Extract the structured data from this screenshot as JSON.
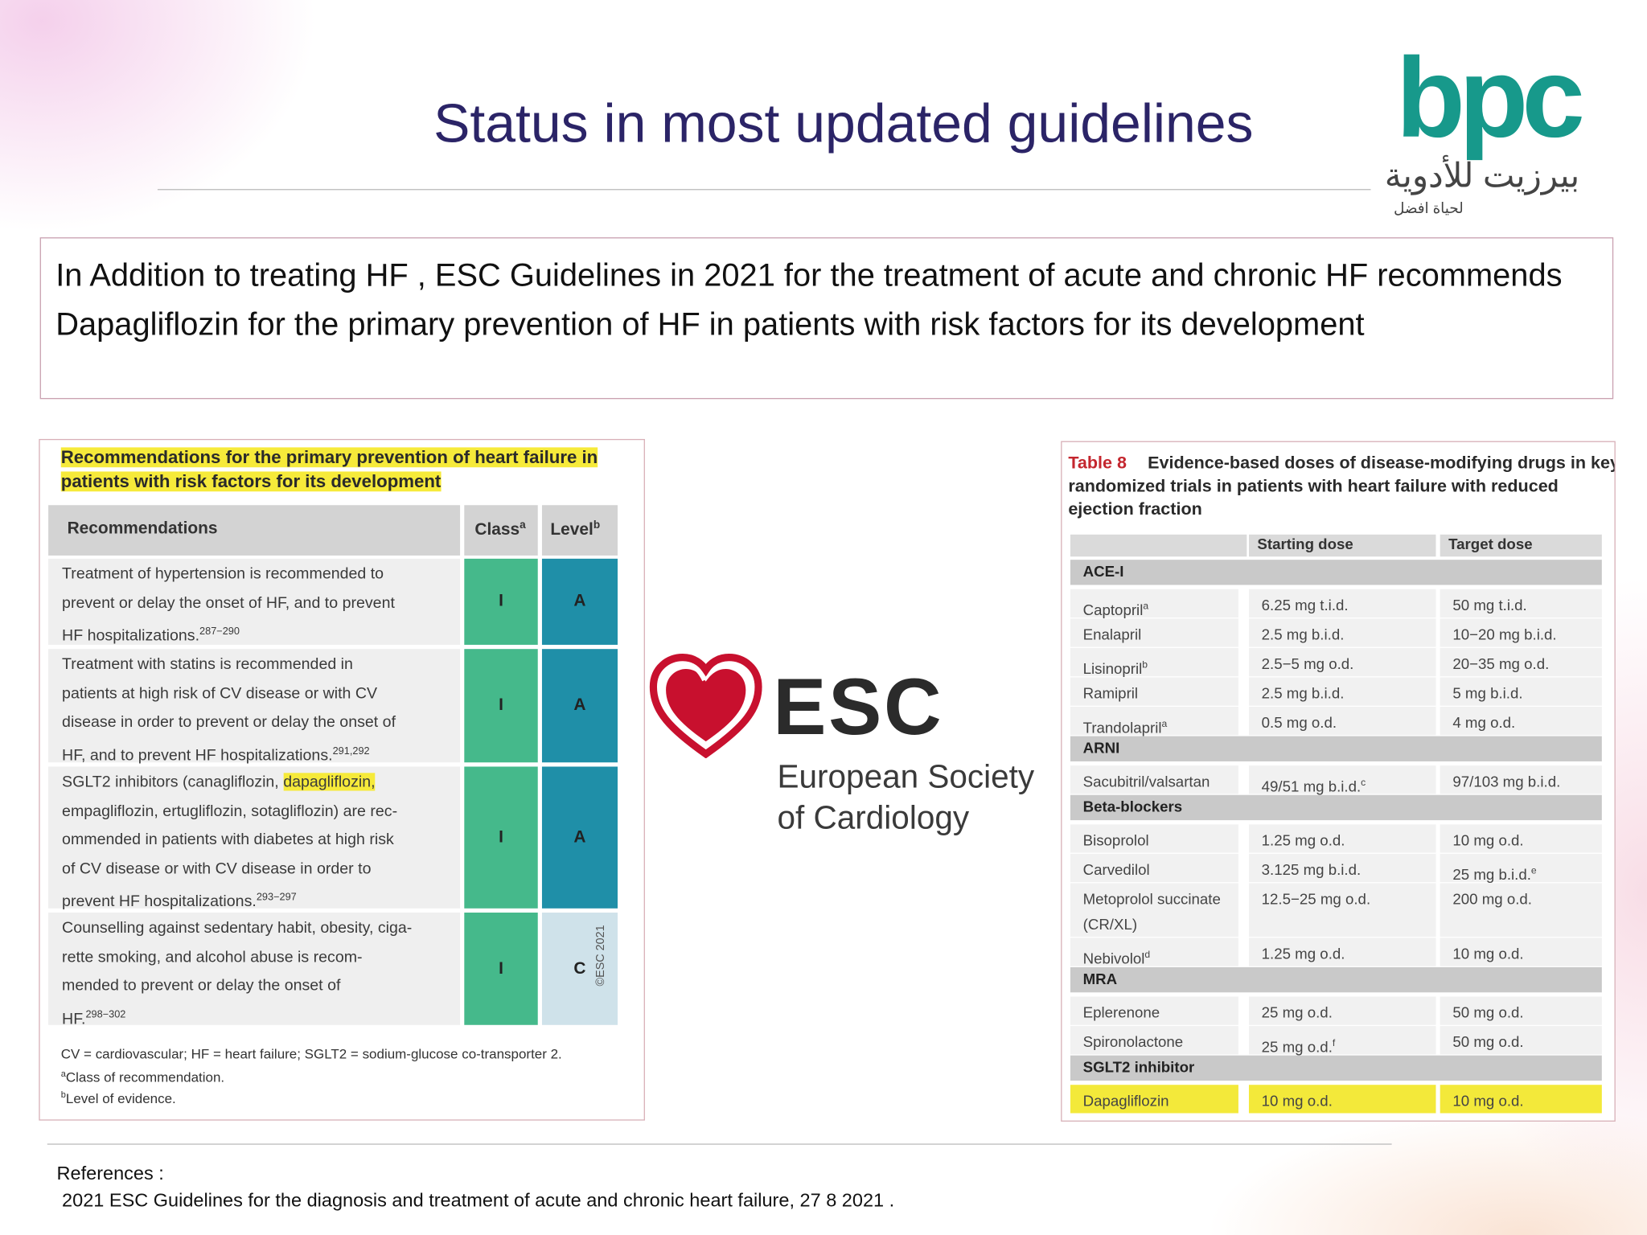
{
  "header": {
    "title": "Status in most updated guidelines"
  },
  "logo": {
    "name": "bpc",
    "arabic": "بيرزيت للأدوية",
    "tagline": "لحياة افضل"
  },
  "intro": "In Addition to treating HF , ESC Guidelines in 2021 for the treatment of acute and chronic HF recommends Dapagliflozin for the primary prevention of HF in patients with risk factors for its development",
  "recommendations": {
    "title": "Recommendations for the primary prevention of heart failure in patients with risk factors for its development",
    "headers": {
      "text": "Recommendations",
      "class": "Class",
      "class_note": "a",
      "level": "Level",
      "level_note": "b"
    },
    "rows": [
      {
        "lines": [
          "Treatment of hypertension is recommended to",
          "prevent or delay the onset of HF, and to prevent",
          "HF hospitalizations."
        ],
        "refs": "287−290",
        "class": "I",
        "level": "A"
      },
      {
        "lines": [
          "Treatment with statins is recommended in",
          "patients at high risk of CV disease or with CV",
          "disease in order to prevent or delay the onset of",
          "HF, and to prevent HF hospitalizations."
        ],
        "refs": "291,292",
        "class": "I",
        "level": "A"
      },
      {
        "lines": [
          {
            "text": "SGLT2 inhibitors (canagliflozin,",
            "highlight": "dapagliflozin,"
          },
          "empagliflozin, ertugliflozin, sotagliflozin) are rec-",
          "ommended in patients with diabetes at high risk",
          "of CV disease or with CV disease in order to",
          "prevent HF hospitalizations."
        ],
        "refs": "293−297",
        "class": "I",
        "level": "A"
      },
      {
        "lines": [
          "Counselling against sedentary habit, obesity, ciga-",
          "rette smoking, and alcohol abuse is recom-",
          "mended to prevent or delay the onset of",
          "HF."
        ],
        "refs": "298−302",
        "class": "I",
        "level": "C"
      }
    ],
    "footnotes": [
      {
        "text": "CV = cardiovascular; HF = heart failure; SGLT2 = sodium-glucose co-transporter 2."
      },
      {
        "note": "a",
        "text": "Class of recommendation."
      },
      {
        "note": "b",
        "text": "Level of evidence."
      }
    ],
    "copyright": "©ESC 2021"
  },
  "esc": {
    "acronym": "ESC",
    "name_lines": [
      "European Society",
      "of Cardiology"
    ]
  },
  "table8": {
    "label": "Table 8",
    "caption": "Evidence-based doses of disease-modifying drugs in key randomized trials in patients with heart failure with reduced ejection fraction",
    "headers": [
      "Starting dose",
      "Target dose"
    ],
    "groups": [
      {
        "name": "ACE-I",
        "rows": [
          {
            "drug": "Captopril",
            "drug_note": "a",
            "start": "6.25 mg t.i.d.",
            "target": "50 mg t.i.d."
          },
          {
            "drug": "Enalapril",
            "start": "2.5 mg b.i.d.",
            "target": "10−20 mg b.i.d."
          },
          {
            "drug": "Lisinopril",
            "drug_note": "b",
            "start": "2.5−5 mg o.d.",
            "target": "20−35 mg o.d."
          },
          {
            "drug": "Ramipril",
            "start": "2.5 mg b.i.d.",
            "target": "5 mg b.i.d."
          },
          {
            "drug": "Trandolapril",
            "drug_note": "a",
            "start": "0.5 mg o.d.",
            "target": "4 mg o.d."
          }
        ]
      },
      {
        "name": "ARNI",
        "rows": [
          {
            "drug": "Sacubitril/valsartan",
            "start": "49/51 mg b.i.d.",
            "start_note": "c",
            "target": "97/103 mg b.i.d."
          }
        ]
      },
      {
        "name": "Beta-blockers",
        "rows": [
          {
            "drug": "Bisoprolol",
            "start": "1.25 mg o.d.",
            "target": "10 mg o.d."
          },
          {
            "drug": "Carvedilol",
            "start": "3.125 mg b.i.d.",
            "target": "25 mg b.i.d.",
            "target_note": "e"
          },
          {
            "drug": "Metoprolol succinate (CR/XL)",
            "start": "12.5−25 mg o.d.",
            "target": "200 mg o.d."
          },
          {
            "drug": "Nebivolol",
            "drug_note": "d",
            "start": "1.25 mg o.d.",
            "target": "10 mg o.d."
          }
        ]
      },
      {
        "name": "MRA",
        "rows": [
          {
            "drug": "Eplerenone",
            "start": "25 mg o.d.",
            "target": "50 mg o.d."
          },
          {
            "drug": "Spironolactone",
            "start": "25 mg o.d.",
            "start_note": "f",
            "target": "50 mg o.d."
          }
        ]
      },
      {
        "name": "SGLT2 inhibitor",
        "rows": [
          {
            "drug": "Dapagliflozin",
            "start": "10 mg o.d.",
            "target": "10 mg o.d.",
            "highlight": true
          }
        ]
      }
    ]
  },
  "references": {
    "label": "References :",
    "items": [
      "2021 ESC Guidelines for the diagnosis and treatment of acute and chronic heart failure, 27 8 2021 ."
    ]
  }
}
